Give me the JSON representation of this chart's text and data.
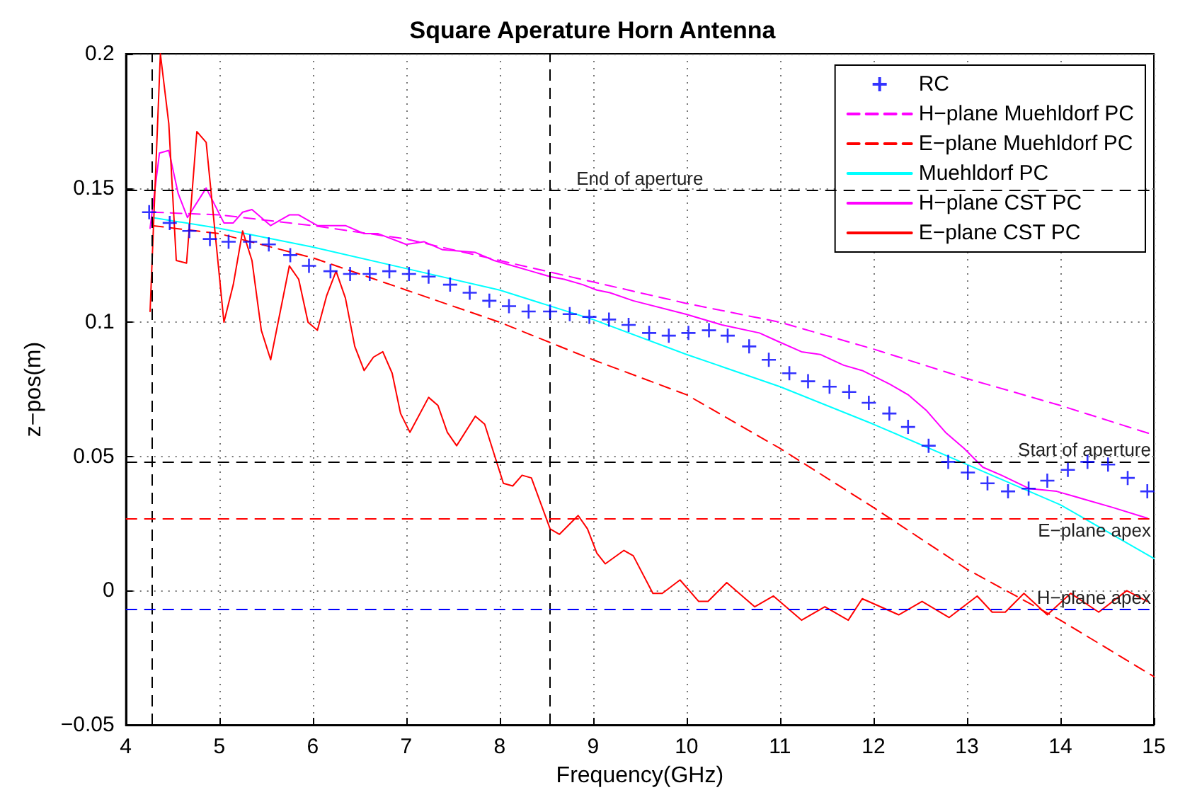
{
  "chart_data": {
    "type": "line",
    "title": "Square Aperature Horn Antenna",
    "xlabel": "Frequency(GHz)",
    "ylabel": "z−pos(m)",
    "xlim": [
      4,
      15
    ],
    "xticks": [
      4,
      5,
      6,
      7,
      8,
      9,
      10,
      11,
      12,
      13,
      14,
      15
    ],
    "ylim": [
      -0.05,
      0.2
    ],
    "yticks": [
      {
        "value": -0.05,
        "label": "−0.05"
      },
      0,
      0.05,
      0.1,
      0.15,
      0.2
    ],
    "grid": true,
    "legend": "top right",
    "series": [
      {
        "name": "RC",
        "type": "scatter",
        "marker": "cross",
        "color": "#0000ff",
        "x": [
          4.25,
          4.47,
          4.68,
          4.9,
          5.1,
          5.33,
          5.53,
          5.76,
          5.96,
          6.19,
          6.4,
          6.61,
          6.82,
          7.03,
          7.24,
          7.47,
          7.68,
          7.89,
          8.1,
          8.31,
          8.54,
          8.75,
          8.96,
          9.17,
          9.38,
          9.6,
          9.81,
          10.02,
          10.24,
          10.44,
          10.67,
          10.88,
          11.1,
          11.3,
          11.53,
          11.74,
          11.95,
          12.17,
          12.37,
          12.59,
          12.8,
          13.01,
          13.22,
          13.44,
          13.66,
          13.86,
          14.08,
          14.29,
          14.51,
          14.72,
          14.93
        ],
        "values": [
          0.141,
          0.137,
          0.134,
          0.131,
          0.13,
          0.13,
          0.129,
          0.125,
          0.121,
          0.119,
          0.118,
          0.118,
          0.119,
          0.118,
          0.117,
          0.114,
          0.111,
          0.108,
          0.106,
          0.104,
          0.104,
          0.103,
          0.102,
          0.101,
          0.099,
          0.096,
          0.095,
          0.096,
          0.097,
          0.095,
          0.091,
          0.086,
          0.081,
          0.078,
          0.076,
          0.074,
          0.07,
          0.066,
          0.061,
          0.054,
          0.048,
          0.044,
          0.04,
          0.037,
          0.038,
          0.041,
          0.045,
          0.048,
          0.047,
          0.042,
          0.037
        ]
      },
      {
        "name": "H−plane Muehldorf PC",
        "type": "line",
        "line_style": "dashed",
        "color": "#ff00ff",
        "x": [
          4.28,
          5,
          6,
          7,
          8,
          9,
          10,
          11,
          12,
          13,
          14,
          15
        ],
        "values": [
          0.141,
          0.14,
          0.136,
          0.131,
          0.123,
          0.115,
          0.107,
          0.1,
          0.09,
          0.079,
          0.069,
          0.058
        ]
      },
      {
        "name": "E−plane Muehldorf PC",
        "type": "line",
        "line_style": "dashed",
        "color": "#ff0000",
        "x": [
          4.28,
          5,
          6,
          7,
          8,
          9,
          10,
          11,
          12,
          13,
          14,
          15
        ],
        "values": [
          0.136,
          0.133,
          0.124,
          0.112,
          0.1,
          0.086,
          0.073,
          0.053,
          0.031,
          0.008,
          -0.011,
          -0.032
        ]
      },
      {
        "name": "Muehldorf PC",
        "type": "line",
        "line_style": "solid",
        "color": "#00ffff",
        "x": [
          4.28,
          5,
          6,
          7,
          8,
          9,
          10,
          11,
          12,
          13,
          14,
          15
        ],
        "values": [
          0.139,
          0.135,
          0.128,
          0.12,
          0.112,
          0.101,
          0.088,
          0.076,
          0.062,
          0.047,
          0.032,
          0.012
        ]
      },
      {
        "name": "H−plane CST PC",
        "type": "line",
        "line_style": "solid",
        "color": "#ff00ff",
        "x": [
          4.26,
          4.36,
          4.46,
          4.56,
          4.66,
          4.86,
          5.05,
          5.15,
          5.25,
          5.35,
          5.55,
          5.75,
          5.85,
          6.05,
          6.35,
          6.55,
          6.7,
          7.0,
          7.19,
          7.39,
          7.74,
          7.94,
          8.14,
          8.34,
          8.54,
          8.69,
          8.89,
          9.04,
          9.18,
          9.43,
          9.99,
          10.38,
          10.78,
          10.97,
          11.23,
          11.43,
          11.68,
          11.88,
          12.17,
          12.37,
          12.57,
          12.77,
          12.97,
          13.17,
          13.37,
          13.67,
          13.96,
          14.26,
          14.56,
          14.93
        ],
        "values": [
          0.135,
          0.163,
          0.164,
          0.148,
          0.139,
          0.15,
          0.137,
          0.137,
          0.141,
          0.142,
          0.136,
          0.14,
          0.14,
          0.136,
          0.136,
          0.133,
          0.133,
          0.129,
          0.13,
          0.127,
          0.126,
          0.123,
          0.121,
          0.119,
          0.117,
          0.116,
          0.114,
          0.112,
          0.111,
          0.108,
          0.103,
          0.099,
          0.096,
          0.093,
          0.089,
          0.088,
          0.084,
          0.082,
          0.077,
          0.073,
          0.067,
          0.059,
          0.053,
          0.046,
          0.043,
          0.038,
          0.037,
          0.034,
          0.031,
          0.027
        ]
      },
      {
        "name": "E−plane CST PC",
        "type": "line",
        "line_style": "solid",
        "color": "#ff0000",
        "x": [
          4.26,
          4.37,
          4.46,
          4.54,
          4.65,
          4.76,
          4.86,
          5.05,
          5.15,
          5.25,
          5.35,
          5.45,
          5.55,
          5.75,
          5.85,
          5.95,
          6.05,
          6.15,
          6.25,
          6.35,
          6.45,
          6.55,
          6.65,
          6.75,
          6.85,
          6.94,
          7.04,
          7.24,
          7.34,
          7.44,
          7.54,
          7.74,
          7.84,
          8.04,
          8.14,
          8.24,
          8.34,
          8.54,
          8.64,
          8.84,
          8.94,
          9.04,
          9.13,
          9.33,
          9.43,
          9.64,
          9.74,
          9.93,
          10.13,
          10.23,
          10.43,
          10.73,
          10.93,
          11.23,
          11.48,
          11.73,
          11.88,
          12.27,
          12.52,
          12.81,
          13.11,
          13.27,
          13.41,
          13.61,
          13.86,
          14.11,
          14.41,
          14.71,
          14.93
        ],
        "values": [
          0.104,
          0.2,
          0.174,
          0.123,
          0.122,
          0.171,
          0.167,
          0.1,
          0.114,
          0.134,
          0.123,
          0.097,
          0.086,
          0.121,
          0.116,
          0.1,
          0.097,
          0.11,
          0.119,
          0.109,
          0.091,
          0.082,
          0.087,
          0.089,
          0.081,
          0.066,
          0.059,
          0.072,
          0.069,
          0.059,
          0.054,
          0.065,
          0.062,
          0.04,
          0.039,
          0.043,
          0.042,
          0.023,
          0.021,
          0.028,
          0.023,
          0.014,
          0.01,
          0.015,
          0.013,
          -0.001,
          -0.001,
          0.004,
          -0.004,
          -0.004,
          0.003,
          -0.006,
          -0.002,
          -0.011,
          -0.006,
          -0.011,
          -0.003,
          -0.009,
          -0.004,
          -0.01,
          -0.002,
          -0.008,
          -0.008,
          -0.001,
          -0.009,
          -0.001,
          -0.008,
          0.0,
          -0.004
        ]
      }
    ],
    "ref_lines": [
      {
        "axis": "x",
        "value": 4.28,
        "color": "#000000",
        "line_style": "dashed"
      },
      {
        "axis": "x",
        "value": 8.54,
        "color": "#000000",
        "line_style": "dashed"
      },
      {
        "axis": "y",
        "value": 0.149,
        "label": "End of aperture",
        "color": "#000000",
        "line_style": "dashed"
      },
      {
        "axis": "y",
        "value": 0.048,
        "label": "Start of aperture",
        "color": "#000000",
        "line_style": "dashed"
      },
      {
        "axis": "y",
        "value": 0.027,
        "label": "E−plane apex",
        "color": "#ff0000",
        "line_style": "dashed"
      },
      {
        "axis": "y",
        "value": -0.007,
        "label": "H−plane apex",
        "color": "#0000ff",
        "line_style": "dashed"
      }
    ]
  }
}
